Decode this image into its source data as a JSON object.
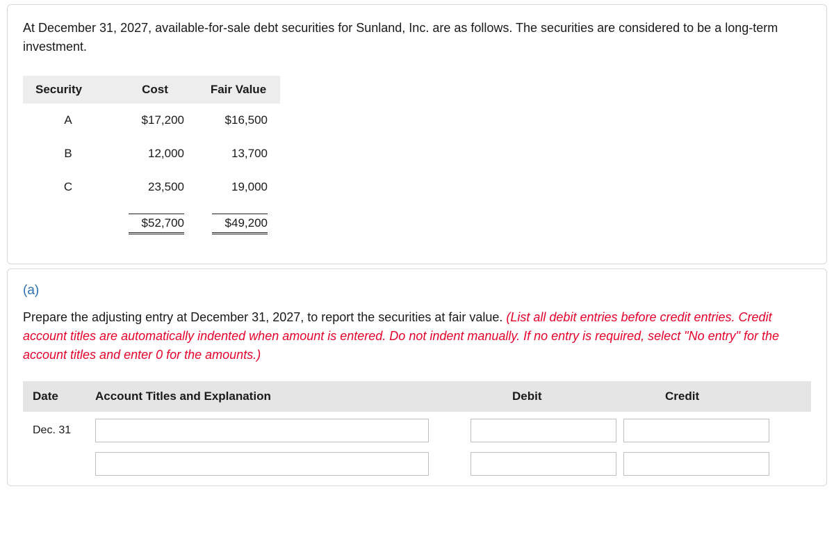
{
  "intro": "At December 31, 2027, available-for-sale debt securities for Sunland, Inc. are as follows. The securities are considered to be a long-term investment.",
  "securities_table": {
    "headers": {
      "security": "Security",
      "cost": "Cost",
      "fair": "Fair Value"
    },
    "rows": [
      {
        "security": "A",
        "cost": "$17,200",
        "fair": "$16,500"
      },
      {
        "security": "B",
        "cost": "12,000",
        "fair": "13,700"
      },
      {
        "security": "C",
        "cost": "23,500",
        "fair": "19,000"
      }
    ],
    "totals": {
      "cost": "$52,700",
      "fair": "$49,200"
    }
  },
  "part_label": "(a)",
  "instruction_plain": "Prepare the adjusting entry at December 31, 2027, to report the securities at fair value. ",
  "instruction_red": "(List all debit entries before credit entries. Credit account titles are automatically indented when amount is entered. Do not indent manually. If no entry is required, select \"No entry\" for the account titles and enter 0 for the amounts.)",
  "journal": {
    "headers": {
      "date": "Date",
      "acct": "Account Titles and Explanation",
      "debit": "Debit",
      "credit": "Credit"
    },
    "date_value": "Dec. 31"
  }
}
